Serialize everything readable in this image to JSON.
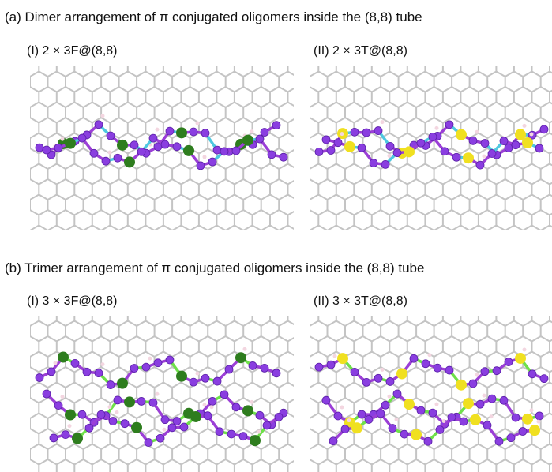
{
  "figure": {
    "panels": [
      {
        "title": "(a) Dimer arrangement of π conjugated oligomers inside the (8,8) tube",
        "subpanels": [
          {
            "label": "(I) 2 × 3F@(8,8)"
          },
          {
            "label": "(II) 2 × 3T@(8,8)"
          }
        ]
      },
      {
        "title": "(b) Trimer arrangement of π conjugated oligomers inside the (8,8) tube",
        "subpanels": [
          {
            "label": "(I) 3 × 3F@(8,8)"
          },
          {
            "label": "(II) 3 × 3T@(8,8)"
          }
        ]
      }
    ]
  }
}
